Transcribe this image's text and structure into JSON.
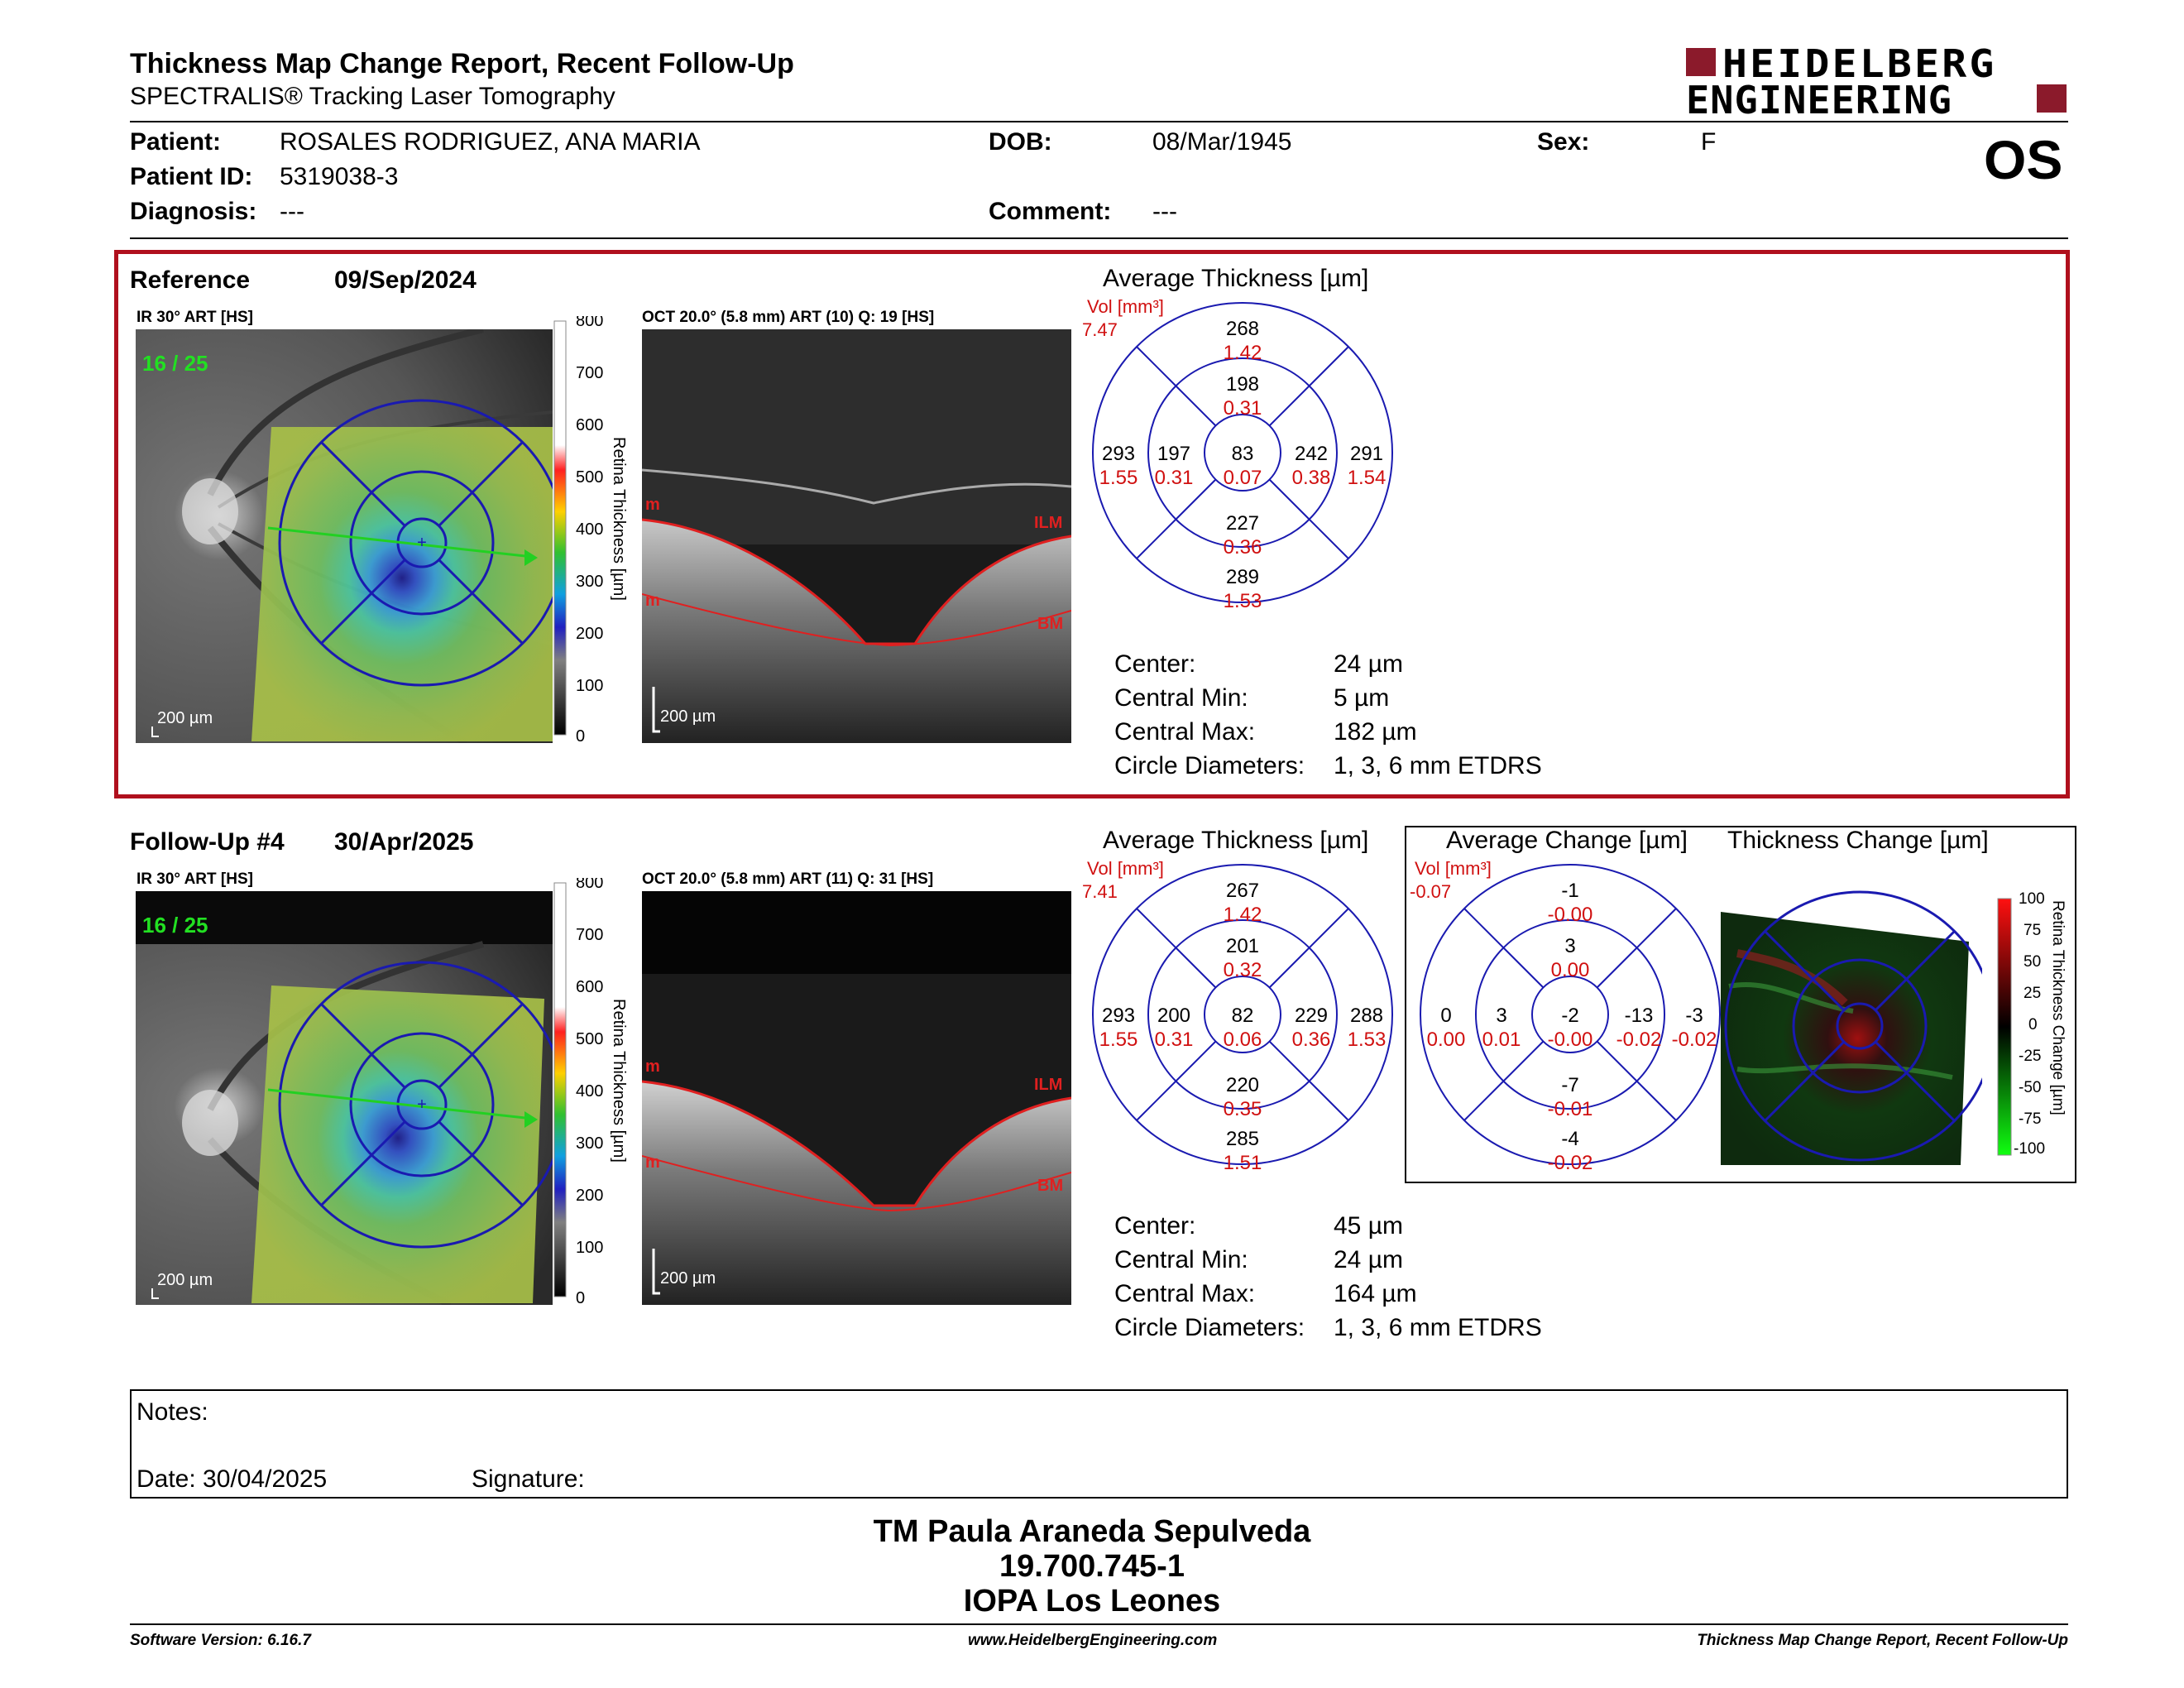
{
  "header": {
    "title": "Thickness Map Change Report, Recent Follow-Up",
    "subtitle": "SPECTRALIS® Tracking Laser Tomography",
    "logo_line1": "HEIDELBERG",
    "logo_line2": "ENGINEERING",
    "brand_color": "#8b1a2b"
  },
  "patient": {
    "patient_label": "Patient:",
    "patient_value": "ROSALES RODRIGUEZ, ANA MARIA",
    "id_label": "Patient ID:",
    "id_value": "5319038-3",
    "diagnosis_label": "Diagnosis:",
    "diagnosis_value": "---",
    "dob_label": "DOB:",
    "dob_value": "08/Mar/1945",
    "comment_label": "Comment:",
    "comment_value": "---",
    "sex_label": "Sex:",
    "sex_value": "F",
    "eye": "OS"
  },
  "reference": {
    "label": "Reference",
    "date": "09/Sep/2024",
    "ir_caption": "IR 30° ART [HS]",
    "ir_counter": "16 / 25",
    "ir_scale": "200 µm",
    "oct_caption": "OCT 20.0° (5.8 mm) ART (10) Q: 19 [HS]",
    "oct_scale": "200 µm",
    "avg_title": "Average Thickness [µm]",
    "vol_label": "Vol [mm³]",
    "vol_value": "7.47",
    "grid": {
      "outer_sup": [
        "268",
        "1.42"
      ],
      "inner_sup": [
        "198",
        "0.31"
      ],
      "outer_tmp": [
        "293",
        "1.55"
      ],
      "inner_tmp": [
        "197",
        "0.31"
      ],
      "center": [
        "83",
        "0.07"
      ],
      "inner_nas": [
        "242",
        "0.38"
      ],
      "outer_nas": [
        "291",
        "1.54"
      ],
      "inner_inf": [
        "227",
        "0.36"
      ],
      "outer_inf": [
        "289",
        "1.53"
      ]
    },
    "stats": {
      "center_label": "Center:",
      "center_value": "24 µm",
      "min_label": "Central Min:",
      "min_value": "5 µm",
      "max_label": "Central Max:",
      "max_value": "182 µm",
      "diam_label": "Circle Diameters:",
      "diam_value": "1, 3, 6 mm ETDRS"
    }
  },
  "followup": {
    "label": "Follow-Up #4",
    "date": "30/Apr/2025",
    "ir_caption": "IR 30° ART [HS]",
    "ir_counter": "16 / 25",
    "ir_scale": "200 µm",
    "oct_caption": "OCT 20.0° (5.8 mm) ART (11) Q: 31 [HS]",
    "oct_scale": "200 µm",
    "avg_title": "Average Thickness [µm]",
    "vol_label": "Vol [mm³]",
    "vol_value": "7.41",
    "grid": {
      "outer_sup": [
        "267",
        "1.42"
      ],
      "inner_sup": [
        "201",
        "0.32"
      ],
      "outer_tmp": [
        "293",
        "1.55"
      ],
      "inner_tmp": [
        "200",
        "0.31"
      ],
      "center": [
        "82",
        "0.06"
      ],
      "inner_nas": [
        "229",
        "0.36"
      ],
      "outer_nas": [
        "288",
        "1.53"
      ],
      "inner_inf": [
        "220",
        "0.35"
      ],
      "outer_inf": [
        "285",
        "1.51"
      ]
    },
    "stats": {
      "center_label": "Center:",
      "center_value": "45 µm",
      "min_label": "Central Min:",
      "min_value": "24 µm",
      "max_label": "Central Max:",
      "max_value": "164 µm",
      "diam_label": "Circle Diameters:",
      "diam_value": "1, 3, 6 mm ETDRS"
    }
  },
  "change": {
    "avg_title": "Average Change [µm]",
    "map_title": "Thickness Change [µm]",
    "vol_label": "Vol [mm³]",
    "vol_value": "-0.07",
    "grid": {
      "outer_sup": [
        "-1",
        "-0.00"
      ],
      "inner_sup": [
        "3",
        "0.00"
      ],
      "outer_tmp": [
        "0",
        "0.00"
      ],
      "inner_tmp": [
        "3",
        "0.01"
      ],
      "center": [
        "-2",
        "-0.00"
      ],
      "inner_nas": [
        "-13",
        "-0.02"
      ],
      "outer_nas": [
        "-3",
        "-0.02"
      ],
      "inner_inf": [
        "-7",
        "-0.01"
      ],
      "outer_inf": [
        "-4",
        "-0.02"
      ]
    },
    "scale_title": "Retina Thickness Change [µm]",
    "scale_ticks": [
      "100",
      "75",
      "50",
      "25",
      "0",
      "-25",
      "-50",
      "-75",
      "-100"
    ]
  },
  "thickness_scale": {
    "title": "Retina Thickness [µm]",
    "ticks": [
      "800",
      "700",
      "600",
      "500",
      "400",
      "300",
      "200",
      "100",
      "0"
    ]
  },
  "oct_labels": {
    "ilm": "ILM",
    "bm": "BM",
    "m": "m"
  },
  "notes": {
    "notes_label": "Notes:",
    "date_label": "Date: 30/04/2025",
    "signature_label": "Signature:"
  },
  "signature_block": {
    "name": "TM Paula Araneda Sepulveda",
    "id": "19.700.745-1",
    "clinic": "IOPA Los Leones"
  },
  "footer": {
    "software": "Software Version: 6.16.7",
    "website": "www.HeidelbergEngineering.com",
    "report": "Thickness Map Change Report, Recent Follow-Up"
  }
}
